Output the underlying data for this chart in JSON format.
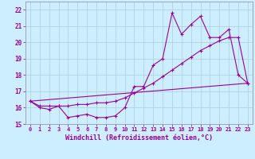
{
  "xlabel": "Windchill (Refroidissement éolien,°C)",
  "bg_color": "#cceeff",
  "line_color": "#990099",
  "grid_color": "#aaccdd",
  "spine_color": "#9999aa",
  "xlim": [
    -0.5,
    23.5
  ],
  "ylim": [
    15,
    22.5
  ],
  "yticks": [
    15,
    16,
    17,
    18,
    19,
    20,
    21,
    22
  ],
  "xticks": [
    0,
    1,
    2,
    3,
    4,
    5,
    6,
    7,
    8,
    9,
    10,
    11,
    12,
    13,
    14,
    15,
    16,
    17,
    18,
    19,
    20,
    21,
    22,
    23
  ],
  "line1_x": [
    0,
    1,
    2,
    3,
    4,
    5,
    6,
    7,
    8,
    9,
    10,
    11,
    12,
    13,
    14,
    15,
    16,
    17,
    18,
    19,
    20,
    21,
    22,
    23
  ],
  "line1_y": [
    16.4,
    16.0,
    15.9,
    16.1,
    15.4,
    15.5,
    15.6,
    15.4,
    15.4,
    15.5,
    16.0,
    17.3,
    17.3,
    18.6,
    19.0,
    21.8,
    20.5,
    21.1,
    21.6,
    20.3,
    20.3,
    20.8,
    18.0,
    17.5
  ],
  "line2_x": [
    0,
    1,
    2,
    3,
    4,
    5,
    6,
    7,
    8,
    9,
    10,
    11,
    12,
    13,
    14,
    15,
    16,
    17,
    18,
    19,
    20,
    21,
    22,
    23
  ],
  "line2_y": [
    16.4,
    16.1,
    16.1,
    16.1,
    16.1,
    16.2,
    16.2,
    16.3,
    16.3,
    16.4,
    16.6,
    16.9,
    17.2,
    17.5,
    17.9,
    18.3,
    18.7,
    19.1,
    19.5,
    19.8,
    20.1,
    20.3,
    20.3,
    17.5
  ],
  "line3_x": [
    0,
    23
  ],
  "line3_y": [
    16.4,
    17.5
  ]
}
